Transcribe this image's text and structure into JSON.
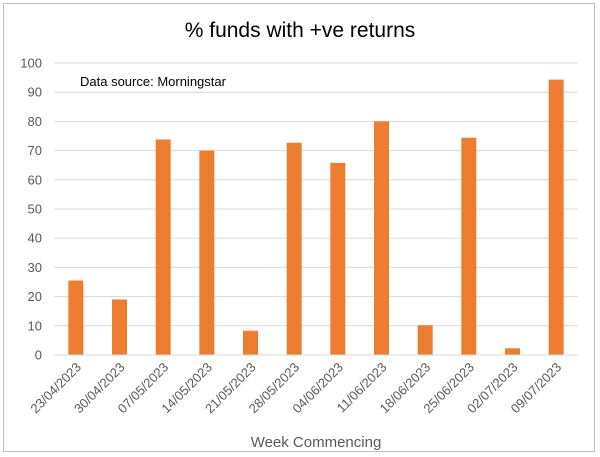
{
  "chart_data": {
    "type": "bar",
    "title": "% funds with +ve returns",
    "annotation": "Data source: Morningstar",
    "xlabel": "Week Commencing",
    "ylabel": "",
    "ylim": [
      0,
      100
    ],
    "yticks": [
      0,
      10,
      20,
      30,
      40,
      50,
      60,
      70,
      80,
      90,
      100
    ],
    "grid": true,
    "categories": [
      "23/04/2023",
      "30/04/2023",
      "07/05/2023",
      "14/05/2023",
      "21/05/2023",
      "28/05/2023",
      "04/06/2023",
      "11/06/2023",
      "18/06/2023",
      "25/06/2023",
      "02/07/2023",
      "09/07/2023"
    ],
    "values": [
      25.5,
      19,
      73.8,
      70,
      8.3,
      72.7,
      65.8,
      80,
      10.2,
      74.4,
      2.3,
      94.3
    ],
    "bar_color": "#ED7D31",
    "grid_color": "#d9d9d9"
  }
}
